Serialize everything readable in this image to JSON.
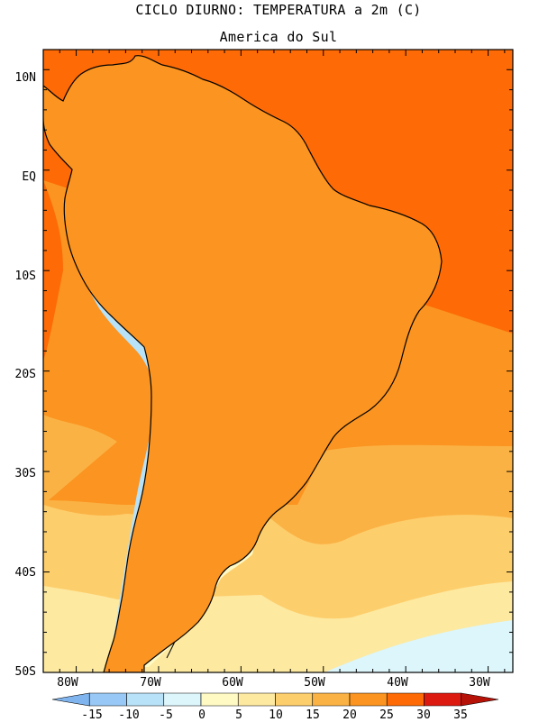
{
  "title": "CICLO DIURNO: TEMPERATURA a 2m (C)",
  "subtitle": "America do Sul",
  "lat_labels": [
    "10N",
    "EQ",
    "10S",
    "20S",
    "30S",
    "40S",
    "50S"
  ],
  "lon_labels": [
    "80W",
    "70W",
    "60W",
    "50W",
    "40W",
    "30W"
  ],
  "colorbar": {
    "labels": [
      "-15",
      "-10",
      "-5",
      "0",
      "5",
      "10",
      "15",
      "20",
      "25",
      "30",
      "35"
    ],
    "colors": [
      "#7fb4ee",
      "#98c8f6",
      "#b8e2f8",
      "#dcf6fb",
      "#fffac4",
      "#fde9a0",
      "#fdce6c",
      "#fbb244",
      "#fb9420",
      "#fd6a06",
      "#dd1a10",
      "#b61208"
    ]
  },
  "domain": {
    "lon": [
      -84,
      -27
    ],
    "lat": [
      -50,
      12
    ]
  },
  "ocean_colors": {
    "band_warm": "#fd6a06",
    "band_orange": "#fb9420",
    "band_gold": "#fbb244",
    "band_tan": "#fdce6c",
    "band_cream": "#fde9a0",
    "band_ice": "#dcf6fb"
  },
  "land_colors": {
    "hot_interior": "#fd6a06",
    "warm": "#fb9420",
    "mild": "#fbb244",
    "cool": "#fde9a0",
    "pale": "#fffac4",
    "andes_cold": "#b8e2f8",
    "andes_very_cold": "#7fb4ee"
  }
}
